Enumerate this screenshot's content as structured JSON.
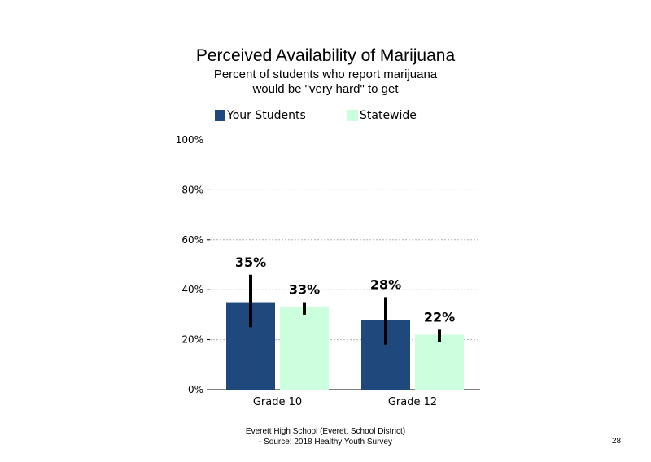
{
  "chart_data": {
    "type": "bar",
    "title": "Perceived Availability of Marijuana",
    "subtitle": [
      "Percent of students who report marijuana",
      "would be \"very hard\" to get"
    ],
    "categories": [
      "Grade 10",
      "Grade 12"
    ],
    "series": [
      {
        "name": "Your Students",
        "color": "#1f497d",
        "values": [
          35,
          28
        ],
        "labels": [
          "35%",
          "28%"
        ],
        "error_low": [
          25,
          18
        ],
        "error_high": [
          46,
          37
        ]
      },
      {
        "name": "Statewide",
        "color": "#ccffdd",
        "values": [
          33,
          22
        ],
        "labels": [
          "33%",
          "22%"
        ],
        "error_low": [
          30,
          19
        ],
        "error_high": [
          35,
          24
        ]
      }
    ],
    "ylim": [
      0,
      100
    ],
    "yticks": [
      0,
      20,
      40,
      60,
      80,
      100
    ],
    "ytick_labels": [
      "0%",
      "20%",
      "40%",
      "60%",
      "80%",
      "100%"
    ],
    "grid": true,
    "legend_position": "top"
  },
  "footer": {
    "line1": "Everett High School (Everett School District)",
    "line2": "- Source: 2018 Healthy Youth Survey",
    "page_number": "28"
  }
}
